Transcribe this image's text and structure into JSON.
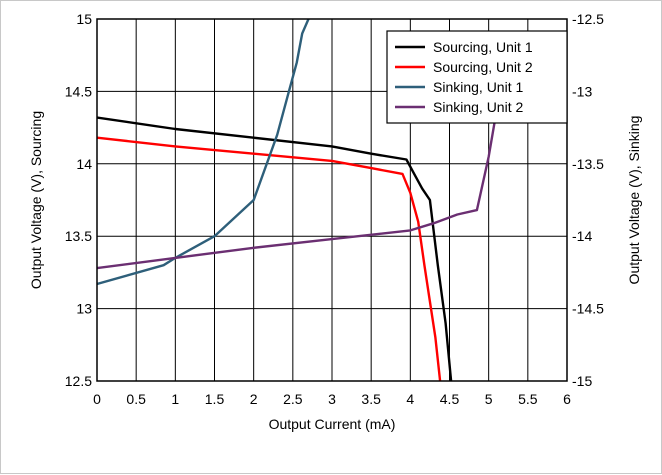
{
  "chart_data": {
    "type": "line",
    "xlabel": "Output Current (mA)",
    "ylabel_left": "Output Voltage (V), Sourcing",
    "ylabel_right": "Output Voltage (V), Sinking",
    "xlim": [
      0,
      6
    ],
    "ylim_left": [
      12.5,
      15
    ],
    "ylim_right": [
      -15,
      -12.5
    ],
    "x_ticks": [
      "0",
      "0.5",
      "1",
      "1.5",
      "2",
      "2.5",
      "3",
      "3.5",
      "4",
      "4.5",
      "5",
      "5.5",
      "6"
    ],
    "y_left_ticks": [
      "12.5",
      "13",
      "13.5",
      "14",
      "14.5",
      "15"
    ],
    "y_right_ticks": [
      "-15",
      "-14.5",
      "-14",
      "-13.5",
      "-13",
      "-12.5"
    ],
    "grid": true,
    "legend_position": "top-right",
    "series": [
      {
        "name": "Sourcing, Unit 1",
        "color": "#000000",
        "axis": "left",
        "x": [
          0,
          1,
          2,
          3,
          3.5,
          3.95,
          4.05,
          4.15,
          4.25,
          4.35,
          4.45,
          4.52
        ],
        "y": [
          14.32,
          14.24,
          14.18,
          14.12,
          14.07,
          14.03,
          13.93,
          13.83,
          13.75,
          13.3,
          12.9,
          12.5
        ]
      },
      {
        "name": "Sourcing, Unit 2",
        "color": "#ff0000",
        "axis": "left",
        "x": [
          0,
          1,
          2,
          3,
          3.5,
          3.9,
          4.0,
          4.1,
          4.18,
          4.25,
          4.32,
          4.38
        ],
        "y": [
          14.18,
          14.12,
          14.07,
          14.02,
          13.97,
          13.93,
          13.8,
          13.6,
          13.3,
          13.05,
          12.8,
          12.5
        ]
      },
      {
        "name": "Sinking, Unit 1",
        "color": "#2e5f7a",
        "axis": "right",
        "x": [
          0,
          0.85,
          1.0,
          1.5,
          2.0,
          2.3,
          2.45,
          2.55,
          2.62,
          2.7
        ],
        "y": [
          -14.33,
          -14.2,
          -14.15,
          -14.0,
          -13.75,
          -13.3,
          -13.0,
          -12.8,
          -12.6,
          -12.5
        ]
      },
      {
        "name": "Sinking, Unit 2",
        "color": "#6b2f72",
        "axis": "right",
        "x": [
          0,
          1,
          2,
          3,
          4,
          4.3,
          4.6,
          4.85,
          5.0,
          5.08
        ],
        "y": [
          -14.22,
          -14.15,
          -14.08,
          -14.02,
          -13.96,
          -13.91,
          -13.85,
          -13.82,
          -13.45,
          -13.2
        ]
      }
    ]
  }
}
